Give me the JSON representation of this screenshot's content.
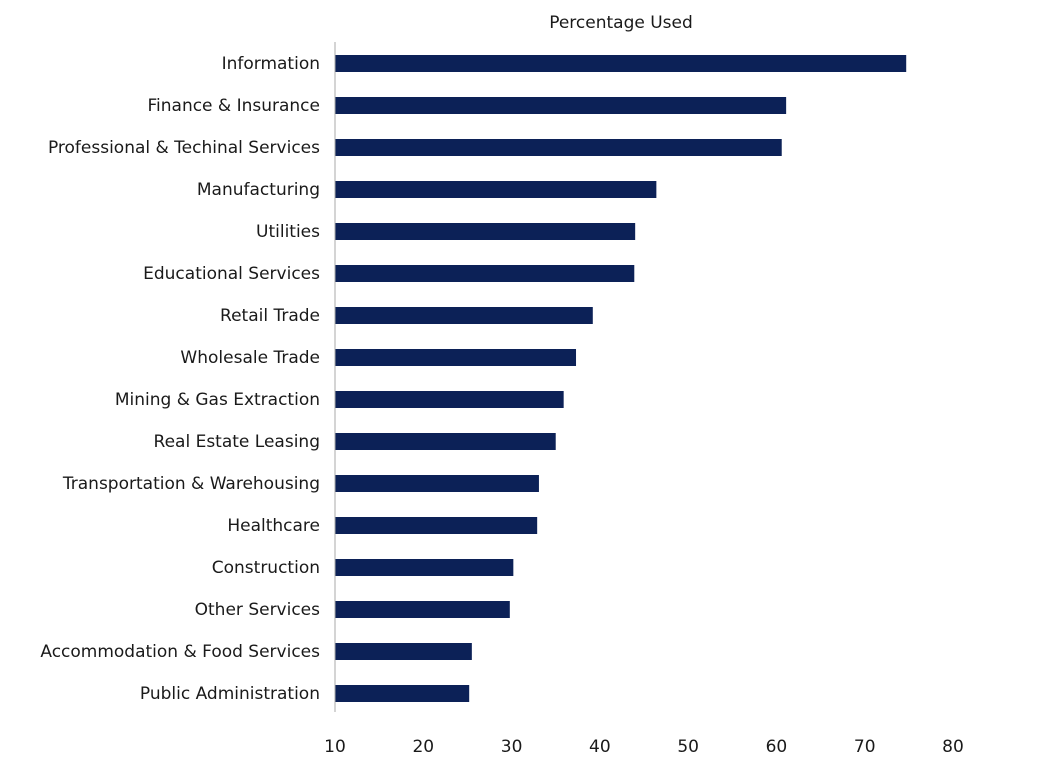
{
  "chart_data": {
    "type": "bar",
    "orientation": "horizontal",
    "title": "Percentage Used",
    "xlabel": "",
    "ylabel": "",
    "xlim": [
      10,
      80
    ],
    "xticks": [
      "10",
      "20",
      "30",
      "40",
      "50",
      "60",
      "70",
      "80"
    ],
    "grid": false,
    "bar_color": "#0c2157",
    "categories": [
      "Information",
      "Finance & Insurance",
      "Professional & Techinal Services",
      "Manufacturing",
      "Utilities",
      "Educational Services",
      "Retail Trade",
      "Wholesale Trade",
      "Mining & Gas Extraction",
      "Real Estate Leasing",
      "Transportation & Warehousing",
      "Healthcare",
      "Construction",
      "Other Services",
      "Accommodation & Food Services",
      "Public Administration"
    ],
    "values": [
      74.7,
      61.1,
      60.6,
      46.4,
      44.0,
      43.9,
      39.2,
      37.3,
      35.9,
      35.0,
      33.1,
      32.9,
      30.2,
      29.8,
      25.5,
      25.2
    ]
  }
}
